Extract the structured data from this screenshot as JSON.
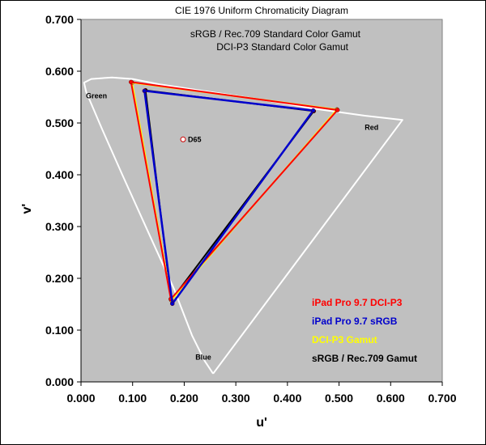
{
  "chart_data": {
    "type": "scatter",
    "title": "CIE 1976 Uniform Chromaticity Diagram",
    "subtitle_lines": [
      "sRGB / Rec.709 Standard Color Gamut",
      "DCI-P3 Standard Color Gamut"
    ],
    "xlabel": "u'",
    "ylabel": "v'",
    "xlim": [
      0,
      0.7
    ],
    "ylim": [
      0,
      0.7
    ],
    "x_ticks": [
      "0.000",
      "0.100",
      "0.200",
      "0.300",
      "0.400",
      "0.500",
      "0.600",
      "0.700"
    ],
    "y_ticks": [
      "0.000",
      "0.100",
      "0.200",
      "0.300",
      "0.400",
      "0.500",
      "0.600",
      "0.700"
    ],
    "grid": false,
    "plot_background": "#c0c0c0",
    "spectral_locus": {
      "color": "#ffffff",
      "points": [
        [
          0.256,
          0.016
        ],
        [
          0.24,
          0.04
        ],
        [
          0.215,
          0.09
        ],
        [
          0.18,
          0.18
        ],
        [
          0.13,
          0.29
        ],
        [
          0.08,
          0.4
        ],
        [
          0.04,
          0.49
        ],
        [
          0.01,
          0.56
        ],
        [
          0.006,
          0.578
        ],
        [
          0.02,
          0.585
        ],
        [
          0.06,
          0.588
        ],
        [
          0.1,
          0.585
        ],
        [
          0.15,
          0.575
        ],
        [
          0.25,
          0.56
        ],
        [
          0.35,
          0.545
        ],
        [
          0.45,
          0.528
        ],
        [
          0.55,
          0.514
        ],
        [
          0.623,
          0.506
        ],
        [
          0.256,
          0.016
        ]
      ]
    },
    "region_labels": [
      {
        "text": "Green",
        "u": 0.03,
        "v": 0.548
      },
      {
        "text": "Red",
        "u": 0.563,
        "v": 0.487
      },
      {
        "text": "Blue",
        "u": 0.237,
        "v": 0.043
      }
    ],
    "white_point": {
      "label": "D65",
      "u": 0.1978,
      "v": 0.4683
    },
    "series": [
      {
        "name": "sRGB / Rec.709 Gamut",
        "color": "#000000",
        "vertices": [
          [
            0.451,
            0.523
          ],
          [
            0.125,
            0.563
          ],
          [
            0.175,
            0.158
          ]
        ]
      },
      {
        "name": "DCI-P3 Gamut",
        "color": "#ffff00",
        "vertices": [
          [
            0.496,
            0.526
          ],
          [
            0.099,
            0.578
          ],
          [
            0.175,
            0.158
          ]
        ]
      },
      {
        "name": "iPad Pro 9.7 DCI-P3",
        "color": "#ff0000",
        "vertices": [
          [
            0.497,
            0.525
          ],
          [
            0.097,
            0.579
          ],
          [
            0.174,
            0.16
          ]
        ]
      },
      {
        "name": "iPad Pro 9.7 sRGB",
        "color": "#0000cc",
        "vertices": [
          [
            0.45,
            0.524
          ],
          [
            0.123,
            0.562
          ],
          [
            0.177,
            0.151
          ]
        ]
      }
    ],
    "legend_position": "bottom-right",
    "legend_order": [
      2,
      3,
      1,
      0
    ]
  }
}
